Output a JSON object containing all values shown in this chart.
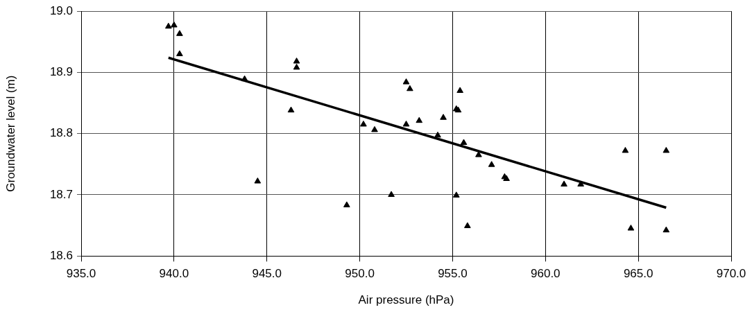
{
  "chart_data": {
    "type": "scatter",
    "xlabel": "Air pressure (hPa)",
    "ylabel": "Groundwater level (m)",
    "xlim": [
      935,
      970
    ],
    "xticks": [
      {
        "value": 935,
        "label": "935.0"
      },
      {
        "value": 940,
        "label": "940.0"
      },
      {
        "value": 945,
        "label": "945.0"
      },
      {
        "value": 950,
        "label": "950.0"
      },
      {
        "value": 955,
        "label": "955.0"
      },
      {
        "value": 960,
        "label": "960.0"
      },
      {
        "value": 965,
        "label": "965.0"
      },
      {
        "value": 970,
        "label": "970.0"
      }
    ],
    "ylim": [
      18.6,
      19.0
    ],
    "yticks": [
      {
        "value": 18.6,
        "label": "18.6"
      },
      {
        "value": 18.7,
        "label": "18.7"
      },
      {
        "value": 18.8,
        "label": "18.8"
      },
      {
        "value": 18.9,
        "label": "18.9"
      },
      {
        "value": 19.0,
        "label": "19.0"
      }
    ],
    "grid": true,
    "legend": false,
    "series": [
      {
        "color": "#000000",
        "marker": "triangle",
        "x": [
          939.7,
          940.0,
          940.3,
          940.3,
          943.8,
          944.5,
          946.3,
          946.6,
          946.6,
          949.3,
          950.2,
          950.8,
          951.7,
          952.5,
          952.7,
          952.5,
          953.2,
          954.2,
          954.5,
          955.2,
          955.3,
          955.4,
          955.6,
          955.2,
          955.8,
          956.4,
          957.1,
          957.8,
          957.9,
          961.0,
          961.9,
          964.3,
          964.6,
          966.5,
          966.5
        ],
        "values": [
          18.975,
          18.977,
          18.963,
          18.93,
          18.889,
          18.722,
          18.838,
          18.918,
          18.908,
          18.683,
          18.815,
          18.806,
          18.7,
          18.884,
          18.873,
          18.815,
          18.821,
          18.797,
          18.826,
          18.84,
          18.838,
          18.87,
          18.785,
          18.699,
          18.649,
          18.765,
          18.749,
          18.729,
          18.726,
          18.717,
          18.717,
          18.772,
          18.645,
          18.772,
          18.642
        ]
      },
      {
        "type": "line",
        "color": "#000000",
        "marker": "none",
        "line_style": "solid",
        "x": [
          939.7,
          966.5
        ],
        "values": [
          18.924,
          18.679
        ]
      }
    ]
  }
}
